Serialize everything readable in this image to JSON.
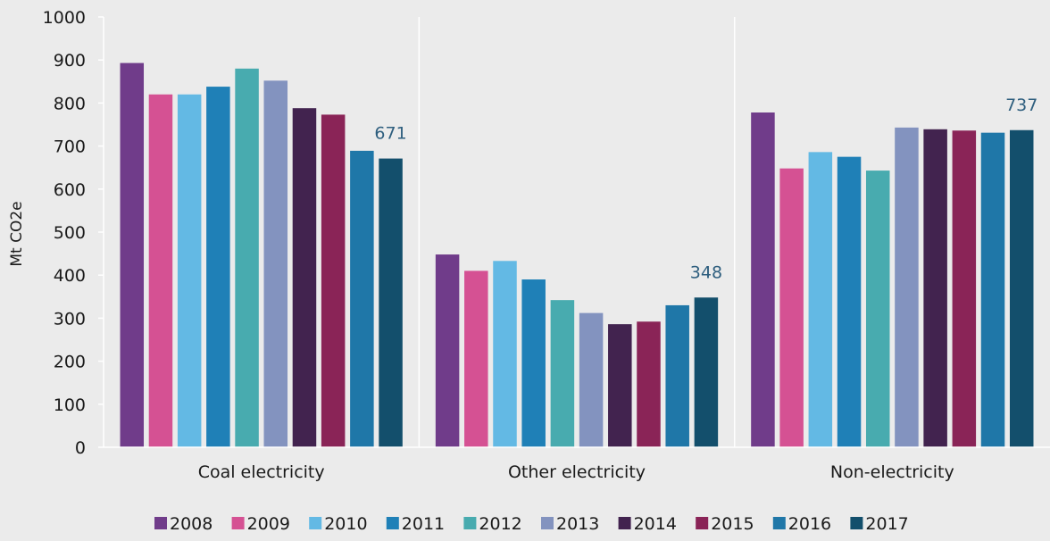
{
  "chart_data": {
    "type": "bar",
    "categories": [
      "Coal electricity",
      "Other electricity",
      "Non-electricity"
    ],
    "ylabel": "Mt CO2e",
    "ylim": [
      0,
      1000
    ],
    "yticks": [
      0,
      100,
      200,
      300,
      400,
      500,
      600,
      700,
      800,
      900,
      1000
    ],
    "grid": false,
    "legend_position": "bottom",
    "series": [
      {
        "name": "2008",
        "color": "#703c8a",
        "values": [
          893,
          448,
          778
        ]
      },
      {
        "name": "2009",
        "color": "#d55193",
        "values": [
          820,
          410,
          648
        ]
      },
      {
        "name": "2010",
        "color": "#63b9e4",
        "values": [
          820,
          433,
          686
        ]
      },
      {
        "name": "2011",
        "color": "#1f80b7",
        "values": [
          838,
          390,
          675
        ]
      },
      {
        "name": "2012",
        "color": "#48abaf",
        "values": [
          880,
          342,
          643
        ]
      },
      {
        "name": "2013",
        "color": "#8393bf",
        "values": [
          852,
          312,
          743
        ]
      },
      {
        "name": "2014",
        "color": "#42234f",
        "values": [
          788,
          286,
          739
        ]
      },
      {
        "name": "2015",
        "color": "#8a2457",
        "values": [
          773,
          292,
          736
        ]
      },
      {
        "name": "2016",
        "color": "#1f77a8",
        "values": [
          689,
          330,
          731
        ]
      },
      {
        "name": "2017",
        "color": "#134f6c",
        "values": [
          671,
          348,
          737
        ]
      }
    ],
    "annotations": [
      {
        "category": "Coal electricity",
        "series": "2017",
        "text": "671"
      },
      {
        "category": "Other electricity",
        "series": "2017",
        "text": "348"
      },
      {
        "category": "Non-electricity",
        "series": "2017",
        "text": "737"
      }
    ],
    "colors": {
      "background": "#ebebeb",
      "axis": "#ffffff",
      "annotation_text": "#2e5e7e"
    }
  }
}
